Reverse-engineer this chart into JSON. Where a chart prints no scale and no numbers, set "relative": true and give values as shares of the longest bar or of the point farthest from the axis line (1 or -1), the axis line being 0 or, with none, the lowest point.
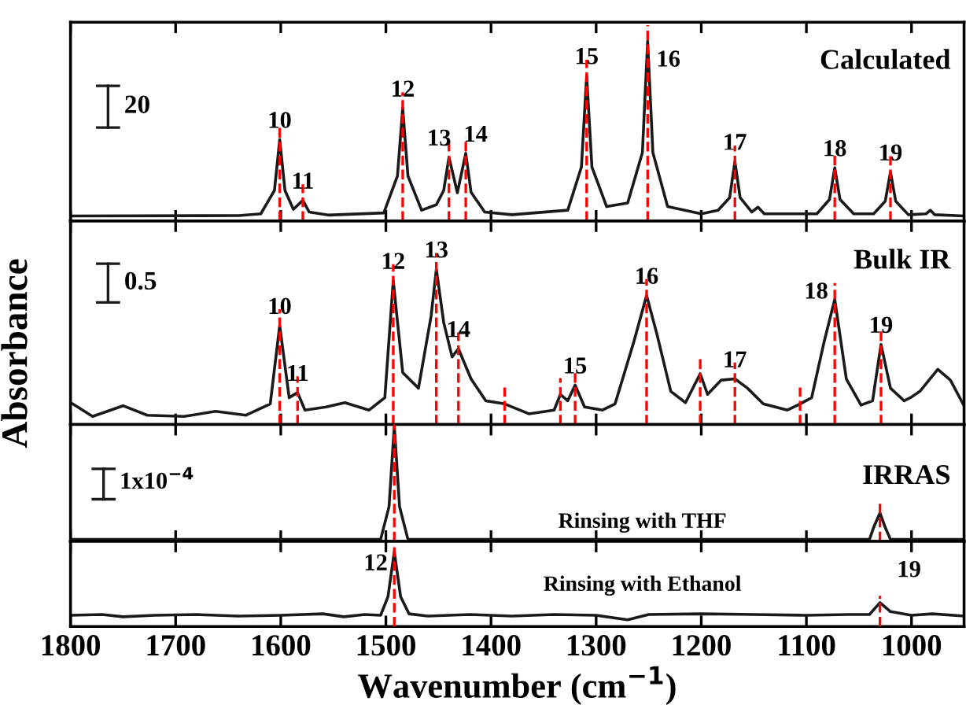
{
  "chart_data": [
    {
      "type": "line",
      "relative": true,
      "xlim": [
        1800,
        950
      ],
      "xticks": [
        1800,
        1700,
        1600,
        1500,
        1400,
        1300,
        1200,
        1100,
        1000
      ],
      "tick_labels": false,
      "grid": false,
      "marker": "none",
      "line_style": "solid",
      "series": [
        {
          "color": "#1a1a1a",
          "x": [
            1800,
            1640,
            1619,
            1606,
            1601,
            1596,
            1588,
            1579,
            1573,
            1555,
            1502,
            1489,
            1484,
            1479,
            1466,
            1452,
            1445,
            1440,
            1432,
            1424,
            1419,
            1406,
            1380,
            1327,
            1314,
            1309,
            1304,
            1290,
            1270,
            1256,
            1251,
            1246,
            1232,
            1200,
            1184,
            1173,
            1168,
            1163,
            1152,
            1146,
            1140,
            1090,
            1078,
            1073,
            1068,
            1055,
            1036,
            1025,
            1020,
            1015,
            1003,
            986,
            982,
            978,
            950
          ],
          "values": [
            0.028,
            0.03,
            0.04,
            0.17,
            0.453,
            0.17,
            0.065,
            0.115,
            0.05,
            0.033,
            0.045,
            0.25,
            0.627,
            0.25,
            0.06,
            0.09,
            0.17,
            0.355,
            0.157,
            0.376,
            0.16,
            0.05,
            0.035,
            0.06,
            0.3,
            0.808,
            0.3,
            0.08,
            0.1,
            0.38,
            1.0,
            0.38,
            0.08,
            0.04,
            0.06,
            0.13,
            0.331,
            0.13,
            0.05,
            0.077,
            0.04,
            0.04,
            0.12,
            0.296,
            0.12,
            0.04,
            0.04,
            0.11,
            0.272,
            0.11,
            0.035,
            0.04,
            0.06,
            0.035,
            0.028
          ]
        }
      ],
      "ref_lines": [
        {
          "axis": "x",
          "value": 1601,
          "color": "#ff0000",
          "line_style": "dashed"
        },
        {
          "axis": "x",
          "value": 1579,
          "color": "#ff0000",
          "line_style": "dashed"
        },
        {
          "axis": "x",
          "value": 1484,
          "color": "#ff0000",
          "line_style": "dashed"
        },
        {
          "axis": "x",
          "value": 1440,
          "color": "#ff0000",
          "line_style": "dashed"
        },
        {
          "axis": "x",
          "value": 1424,
          "color": "#ff0000",
          "line_style": "dashed"
        },
        {
          "axis": "x",
          "value": 1309,
          "color": "#ff0000",
          "line_style": "dashed"
        },
        {
          "axis": "x",
          "value": 1251,
          "color": "#ff0000",
          "line_style": "dashed"
        },
        {
          "axis": "x",
          "value": 1168,
          "color": "#ff0000",
          "line_style": "dashed"
        },
        {
          "axis": "x",
          "value": 1073,
          "color": "#ff0000",
          "line_style": "dashed"
        },
        {
          "axis": "x",
          "value": 1020,
          "color": "#ff0000",
          "line_style": "dashed"
        }
      ],
      "annotations": [
        "Calculated",
        "20",
        {
          "text": "10",
          "x": 1601,
          "y": 0.453
        },
        {
          "text": "11",
          "x": 1579,
          "y": 0.115
        },
        {
          "text": "12",
          "x": 1484,
          "y": 0.627
        },
        {
          "text": "13",
          "x": 1440,
          "y": 0.355
        },
        {
          "text": "14",
          "x": 1424,
          "y": 0.376
        },
        {
          "text": "15",
          "x": 1309,
          "y": 0.808
        },
        {
          "text": "16",
          "x": 1251,
          "y": 1.0
        },
        {
          "text": "17",
          "x": 1168,
          "y": 0.331
        },
        {
          "text": "18",
          "x": 1073,
          "y": 0.296
        },
        {
          "text": "19",
          "x": 1020,
          "y": 0.272
        }
      ]
    },
    {
      "type": "line",
      "relative": true,
      "ylabel": "Absorbance",
      "xlim": [
        1800,
        950
      ],
      "xticks": [
        1800,
        1700,
        1600,
        1500,
        1400,
        1300,
        1200,
        1100,
        1000
      ],
      "tick_labels": false,
      "grid": false,
      "marker": "none",
      "line_style": "solid",
      "series": [
        {
          "color": "#1a1a1a",
          "x": [
            1798,
            1779,
            1750,
            1727,
            1692,
            1662,
            1633,
            1610,
            1601,
            1592,
            1584,
            1577,
            1557,
            1539,
            1516,
            1501,
            1493,
            1484,
            1469,
            1457,
            1452,
            1445,
            1437,
            1431,
            1419,
            1405,
            1387,
            1364,
            1340,
            1334,
            1327,
            1320,
            1311,
            1294,
            1282,
            1264,
            1252,
            1242,
            1229,
            1215,
            1201,
            1194,
            1181,
            1168,
            1156,
            1141,
            1118,
            1106,
            1095,
            1083,
            1073,
            1062,
            1048,
            1037,
            1029,
            1020,
            1007,
            1001,
            992,
            975,
            963,
            951
          ],
          "values": [
            0.133,
            0.052,
            0.121,
            0.06,
            0.052,
            0.085,
            0.06,
            0.133,
            0.637,
            0.173,
            0.206,
            0.093,
            0.113,
            0.141,
            0.093,
            0.173,
            0.927,
            0.335,
            0.234,
            0.698,
            1.0,
            0.657,
            0.435,
            0.488,
            0.294,
            0.153,
            0.133,
            0.069,
            0.093,
            0.194,
            0.153,
            0.254,
            0.113,
            0.093,
            0.133,
            0.536,
            0.831,
            0.577,
            0.214,
            0.141,
            0.327,
            0.194,
            0.286,
            0.294,
            0.234,
            0.133,
            0.093,
            0.133,
            0.173,
            0.536,
            0.806,
            0.294,
            0.125,
            0.153,
            0.516,
            0.234,
            0.153,
            0.173,
            0.214,
            0.355,
            0.286,
            0.133
          ]
        }
      ],
      "ref_lines": [
        {
          "axis": "x",
          "value": 1601,
          "color": "#ff0000",
          "line_style": "dashed"
        },
        {
          "axis": "x",
          "value": 1584,
          "color": "#ff0000",
          "line_style": "dashed"
        },
        {
          "axis": "x",
          "value": 1493,
          "color": "#ff0000",
          "line_style": "dashed"
        },
        {
          "axis": "x",
          "value": 1452,
          "color": "#ff0000",
          "line_style": "dashed"
        },
        {
          "axis": "x",
          "value": 1431,
          "color": "#ff0000",
          "line_style": "dashed"
        },
        {
          "axis": "x",
          "value": 1387,
          "color": "#ff0000",
          "line_style": "dashed"
        },
        {
          "axis": "x",
          "value": 1334,
          "color": "#ff0000",
          "line_style": "dashed"
        },
        {
          "axis": "x",
          "value": 1320,
          "color": "#ff0000",
          "line_style": "dashed"
        },
        {
          "axis": "x",
          "value": 1252,
          "color": "#ff0000",
          "line_style": "dashed"
        },
        {
          "axis": "x",
          "value": 1201,
          "color": "#ff0000",
          "line_style": "dashed"
        },
        {
          "axis": "x",
          "value": 1168,
          "color": "#ff0000",
          "line_style": "dashed"
        },
        {
          "axis": "x",
          "value": 1106,
          "color": "#ff0000",
          "line_style": "dashed"
        },
        {
          "axis": "x",
          "value": 1073,
          "color": "#ff0000",
          "line_style": "dashed"
        },
        {
          "axis": "x",
          "value": 1029,
          "color": "#ff0000",
          "line_style": "dashed"
        }
      ],
      "annotations": [
        "Bulk IR",
        "0.5",
        {
          "text": "10",
          "x": 1601,
          "y": 0.637
        },
        {
          "text": "11",
          "x": 1584,
          "y": 0.206
        },
        {
          "text": "12",
          "x": 1493,
          "y": 0.927
        },
        {
          "text": "13",
          "x": 1452,
          "y": 1.0
        },
        {
          "text": "14",
          "x": 1431,
          "y": 0.488
        },
        {
          "text": "15",
          "x": 1320,
          "y": 0.254
        },
        {
          "text": "16",
          "x": 1252,
          "y": 0.831
        },
        {
          "text": "17",
          "x": 1168,
          "y": 0.294
        },
        {
          "text": "18",
          "x": 1073,
          "y": 0.806
        },
        {
          "text": "19",
          "x": 1029,
          "y": 0.516
        }
      ]
    },
    {
      "type": "line",
      "relative": true,
      "xlim": [
        1800,
        950
      ],
      "xticks": [
        1800,
        1700,
        1600,
        1500,
        1400,
        1300,
        1200,
        1100,
        1000
      ],
      "tick_labels": false,
      "grid": false,
      "marker": "none",
      "line_style": "solid",
      "series": [
        {
          "color": "#1a1a1a",
          "x": [
            1800,
            1505,
            1497,
            1492,
            1487,
            1479,
            1040,
            1036,
            1030,
            1025,
            1020,
            950
          ],
          "values": [
            0.016,
            0.016,
            0.3,
            1.0,
            0.3,
            0.016,
            0.016,
            0.12,
            0.246,
            0.12,
            0.016,
            0.016
          ]
        }
      ],
      "ref_lines": [
        {
          "axis": "x",
          "value": 1492,
          "color": "#ff0000",
          "line_style": "dashed"
        },
        {
          "axis": "x",
          "value": 1030,
          "color": "#ff0000",
          "line_style": "dashed"
        }
      ],
      "annotations": [
        "IRRAS",
        "1x10$^{−4}$",
        "Rinsing with THF"
      ]
    },
    {
      "type": "line",
      "relative": true,
      "xlabel": "Wavenumber (cm$^{−1}$)",
      "xlim": [
        1800,
        950
      ],
      "xticks": [
        1800,
        1700,
        1600,
        1500,
        1400,
        1300,
        1200,
        1100,
        1000
      ],
      "tick_labels": "x",
      "grid": false,
      "marker": "none",
      "line_style": "solid",
      "series": [
        {
          "color": "#1a1a1a",
          "x": [
            1800,
            1770,
            1750,
            1720,
            1680,
            1640,
            1600,
            1560,
            1540,
            1520,
            1505,
            1498,
            1492,
            1486,
            1478,
            1460,
            1420,
            1380,
            1340,
            1300,
            1270,
            1250,
            1200,
            1150,
            1100,
            1060,
            1040,
            1030,
            1020,
            1000,
            980,
            950
          ],
          "values": [
            0.15,
            0.16,
            0.13,
            0.15,
            0.16,
            0.14,
            0.15,
            0.17,
            0.13,
            0.16,
            0.15,
            0.4,
            1.0,
            0.4,
            0.17,
            0.14,
            0.16,
            0.14,
            0.16,
            0.15,
            0.09,
            0.16,
            0.17,
            0.16,
            0.15,
            0.16,
            0.16,
            0.32,
            0.2,
            0.15,
            0.17,
            0.14
          ]
        }
      ],
      "ref_lines": [
        {
          "axis": "x",
          "value": 1492,
          "color": "#ff0000",
          "line_style": "dashed"
        },
        {
          "axis": "x",
          "value": 1030,
          "color": "#ff0000",
          "line_style": "dashed"
        }
      ],
      "annotations": [
        "Rinsing with Ethanol",
        {
          "text": "12",
          "x": 1492,
          "y": 0.83
        },
        "19"
      ]
    }
  ]
}
